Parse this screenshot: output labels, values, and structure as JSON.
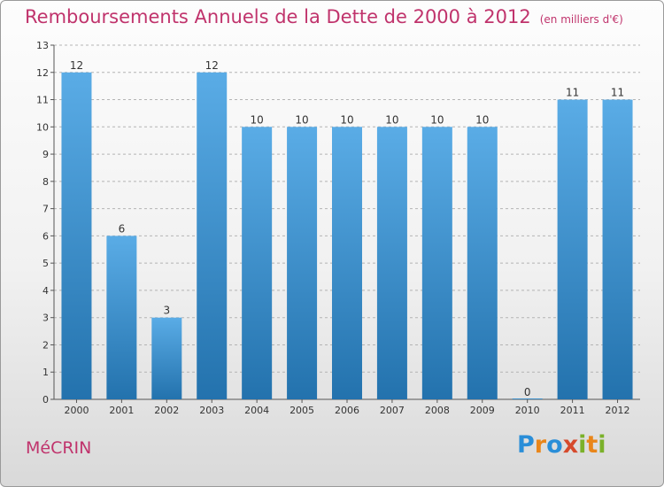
{
  "header": {
    "title": "Remboursements Annuels de la Dette de 2000 à 2012",
    "subtitle": "(en milliers d'€)"
  },
  "footer": {
    "commune": "MéCRIN",
    "brand": "Proxiti"
  },
  "colors": {
    "title": "#c0336c",
    "bar_light": "#5aace6",
    "bar_dark": "#2372ad",
    "brand_letters": [
      "#2a8ed8",
      "#e9861a",
      "#2a8ed8",
      "#d64a2c",
      "#7bb12a",
      "#e9861a",
      "#7bb12a"
    ]
  },
  "chart_data": {
    "type": "bar",
    "title": "Remboursements Annuels de la Dette de 2000 à 2012",
    "categories": [
      "2000",
      "2001",
      "2002",
      "2003",
      "2004",
      "2005",
      "2006",
      "2007",
      "2008",
      "2009",
      "2010",
      "2011",
      "2012"
    ],
    "values": [
      12,
      6,
      3,
      12,
      10,
      10,
      10,
      10,
      10,
      10,
      0,
      11,
      11
    ],
    "ylim": [
      0,
      13
    ],
    "yticks": [
      0,
      1,
      2,
      3,
      4,
      5,
      6,
      7,
      8,
      9,
      10,
      11,
      12,
      13
    ],
    "xlabel": "",
    "ylabel": "",
    "grid": true,
    "data_labels": true
  }
}
